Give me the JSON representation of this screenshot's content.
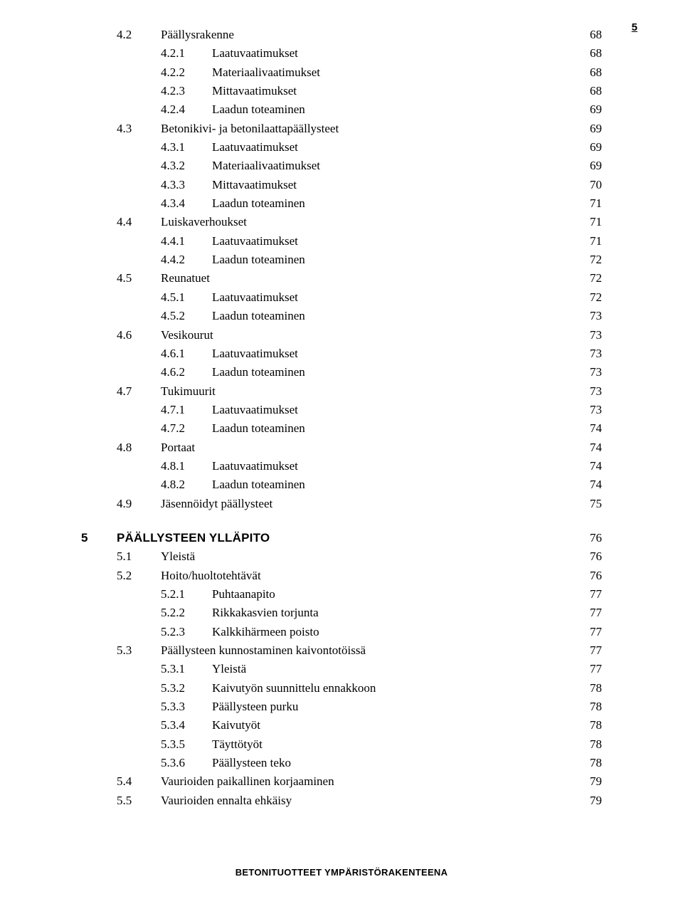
{
  "page_number": "5",
  "footer": "BETONITUOTTEET YMPÄRISTÖRAKENTEENA",
  "entries": [
    {
      "type": "section",
      "num": "4.2",
      "title": "Päällysrakenne",
      "page": "68"
    },
    {
      "type": "sub",
      "num": "4.2.1",
      "title": "Laatuvaatimukset",
      "page": "68"
    },
    {
      "type": "sub",
      "num": "4.2.2",
      "title": "Materiaalivaatimukset",
      "page": "68"
    },
    {
      "type": "sub",
      "num": "4.2.3",
      "title": "Mittavaatimukset",
      "page": "68"
    },
    {
      "type": "sub",
      "num": "4.2.4",
      "title": "Laadun toteaminen",
      "page": "69"
    },
    {
      "type": "section",
      "num": "4.3",
      "title": "Betonikivi- ja betonilaattapäällysteet",
      "page": "69"
    },
    {
      "type": "sub",
      "num": "4.3.1",
      "title": "Laatuvaatimukset",
      "page": "69"
    },
    {
      "type": "sub",
      "num": "4.3.2",
      "title": "Materiaalivaatimukset",
      "page": "69"
    },
    {
      "type": "sub",
      "num": "4.3.3",
      "title": "Mittavaatimukset",
      "page": "70"
    },
    {
      "type": "sub",
      "num": "4.3.4",
      "title": "Laadun toteaminen",
      "page": "71"
    },
    {
      "type": "section",
      "num": "4.4",
      "title": "Luiskaverhoukset",
      "page": "71"
    },
    {
      "type": "sub",
      "num": "4.4.1",
      "title": "Laatuvaatimukset",
      "page": "71"
    },
    {
      "type": "sub",
      "num": "4.4.2",
      "title": "Laadun toteaminen",
      "page": "72"
    },
    {
      "type": "section",
      "num": "4.5",
      "title": "Reunatuet",
      "page": "72"
    },
    {
      "type": "sub",
      "num": "4.5.1",
      "title": "Laatuvaatimukset",
      "page": "72"
    },
    {
      "type": "sub",
      "num": "4.5.2",
      "title": "Laadun toteaminen",
      "page": "73"
    },
    {
      "type": "section",
      "num": "4.6",
      "title": "Vesikourut",
      "page": "73"
    },
    {
      "type": "sub",
      "num": "4.6.1",
      "title": "Laatuvaatimukset",
      "page": "73"
    },
    {
      "type": "sub",
      "num": "4.6.2",
      "title": "Laadun toteaminen",
      "page": "73"
    },
    {
      "type": "section",
      "num": "4.7",
      "title": "Tukimuurit",
      "page": "73"
    },
    {
      "type": "sub",
      "num": "4.7.1",
      "title": "Laatuvaatimukset",
      "page": "73"
    },
    {
      "type": "sub",
      "num": "4.7.2",
      "title": "Laadun toteaminen",
      "page": "74"
    },
    {
      "type": "section",
      "num": "4.8",
      "title": "Portaat",
      "page": "74"
    },
    {
      "type": "sub",
      "num": "4.8.1",
      "title": "Laatuvaatimukset",
      "page": "74"
    },
    {
      "type": "sub",
      "num": "4.8.2",
      "title": "Laadun toteaminen",
      "page": "74"
    },
    {
      "type": "section",
      "num": "4.9",
      "title": "Jäsennöidyt päällysteet",
      "page": "75"
    },
    {
      "type": "gap"
    },
    {
      "type": "chapter",
      "num": "5",
      "title": "PÄÄLLYSTEEN YLLÄPITO",
      "page": "76"
    },
    {
      "type": "section",
      "num": "5.1",
      "title": "Yleistä",
      "page": "76"
    },
    {
      "type": "section",
      "num": "5.2",
      "title": "Hoito/huoltotehtävät",
      "page": "76"
    },
    {
      "type": "sub",
      "num": "5.2.1",
      "title": "Puhtaanapito",
      "page": "77"
    },
    {
      "type": "sub",
      "num": "5.2.2",
      "title": "Rikkakasvien torjunta",
      "page": "77"
    },
    {
      "type": "sub",
      "num": "5.2.3",
      "title": "Kalkkihärmeen poisto",
      "page": "77"
    },
    {
      "type": "section",
      "num": "5.3",
      "title": "Päällysteen kunnostaminen kaivontotöissä",
      "page": "77"
    },
    {
      "type": "sub",
      "num": "5.3.1",
      "title": "Yleistä",
      "page": "77"
    },
    {
      "type": "sub",
      "num": "5.3.2",
      "title": "Kaivutyön suunnittelu ennakkoon",
      "page": "78"
    },
    {
      "type": "sub",
      "num": "5.3.3",
      "title": "Päällysteen purku",
      "page": "78"
    },
    {
      "type": "sub",
      "num": "5.3.4",
      "title": "Kaivutyöt",
      "page": "78"
    },
    {
      "type": "sub",
      "num": "5.3.5",
      "title": "Täyttötyöt",
      "page": "78"
    },
    {
      "type": "sub",
      "num": "5.3.6",
      "title": "Päällysteen teko",
      "page": "78"
    },
    {
      "type": "section",
      "num": "5.4",
      "title": "Vaurioiden paikallinen korjaaminen",
      "page": "79"
    },
    {
      "type": "section",
      "num": "5.5",
      "title": "Vaurioiden ennalta ehkäisy",
      "page": "79"
    }
  ]
}
